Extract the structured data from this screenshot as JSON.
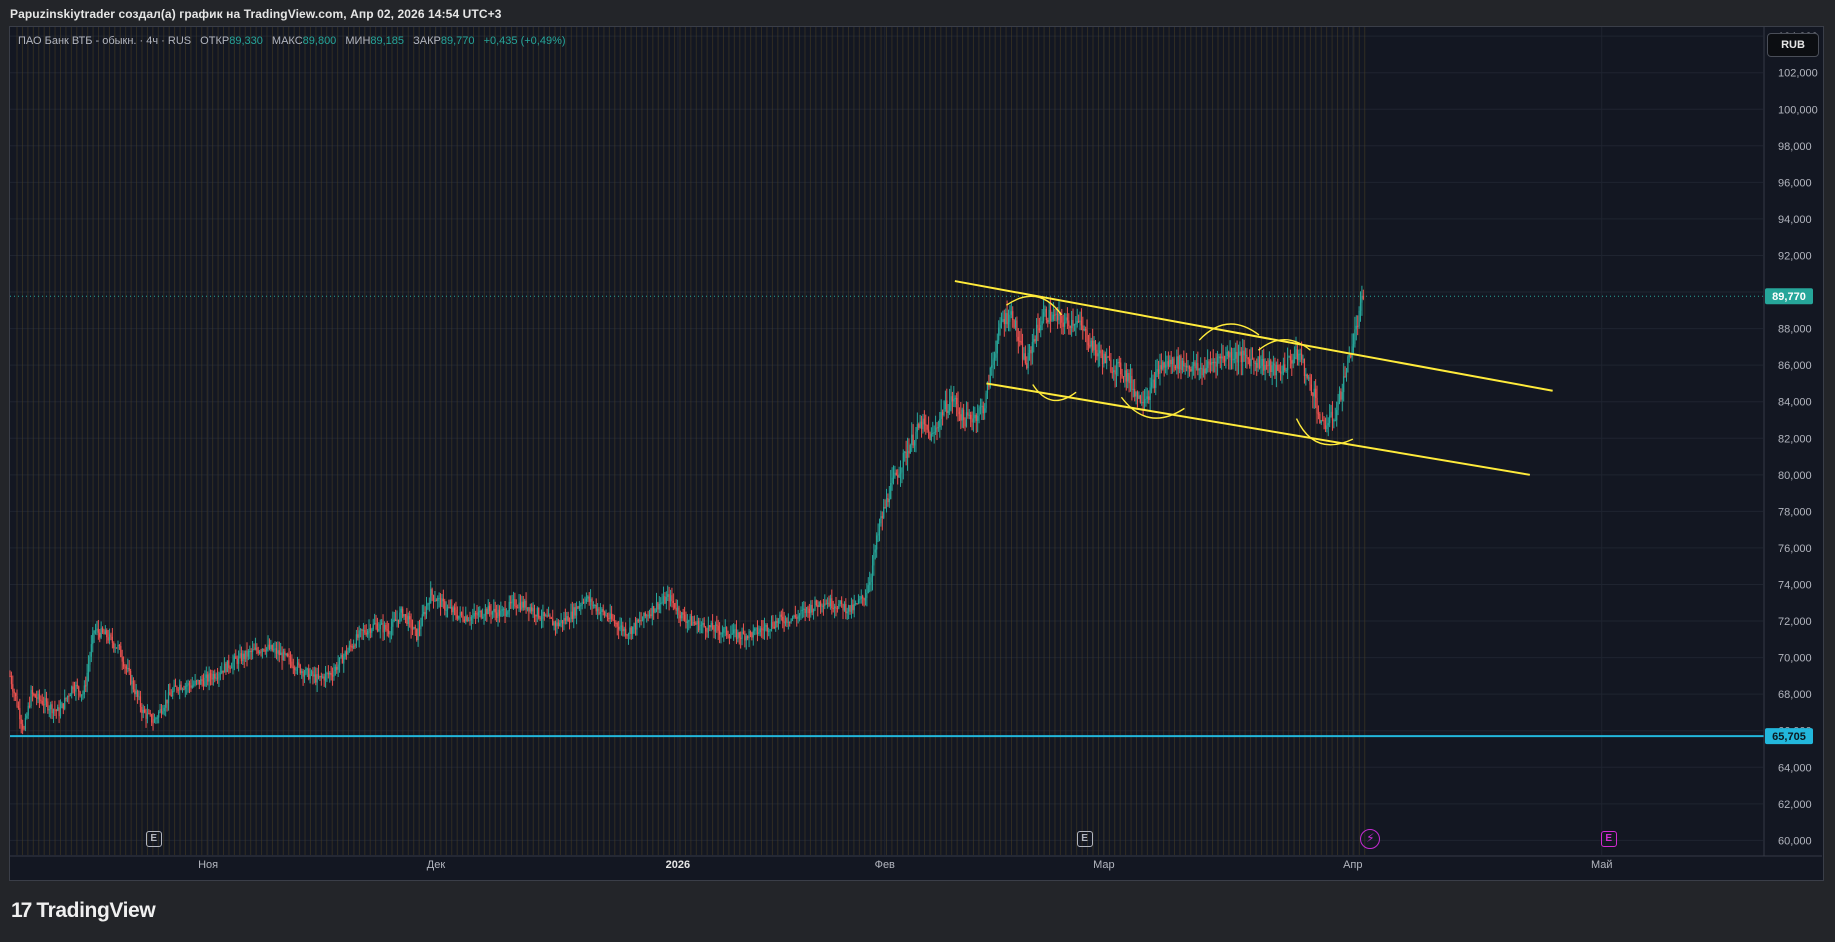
{
  "header": {
    "attribution": "Papuzinskiytrader создал(а) график на TradingView.com, Апр 02, 2026 14:54 UTC+3"
  },
  "legend": {
    "symbol": "ПАО Банк ВТБ - обыкн. · 4ч · RUS",
    "open_label": "ОТКР",
    "open_value": "89,330",
    "high_label": "МАКС",
    "high_value": "89,800",
    "low_label": "МИН",
    "low_value": "89,185",
    "close_label": "ЗАКР",
    "close_value": "89,770",
    "change": "+0,435 (+0,49%)"
  },
  "toolbar": {
    "currency": "RUB"
  },
  "branding": {
    "logo_mark": "17",
    "logo_name": "TradingView"
  },
  "events": {
    "earnings_symbol": "E",
    "dividend_symbol": "⚡"
  },
  "colors": {
    "background": "#131722",
    "up": "#26a69a",
    "down": "#ef5350",
    "trendline": "#ffeb3b",
    "support": "#22b7dc",
    "last_price": "#26a69a",
    "session_lines": "#4b3f25"
  },
  "chart_data": {
    "type": "candlestick",
    "symbol": "ПАО Банк ВТБ - обыкн.",
    "interval": "4ч",
    "currency": "RUB",
    "y_ticks": [
      "60,000",
      "62,000",
      "64,000",
      "66,000",
      "68,000",
      "70,000",
      "72,000",
      "74,000",
      "76,000",
      "78,000",
      "80,000",
      "82,000",
      "84,000",
      "86,000",
      "88,000",
      "90,000",
      "92,000",
      "94,000",
      "96,000",
      "98,000",
      "100,000",
      "102,000",
      "104,000"
    ],
    "ylim": [
      59.2,
      104.5
    ],
    "x_labels": [
      {
        "text": "Ноя",
        "t": 0.113,
        "bold": false
      },
      {
        "text": "Дек",
        "t": 0.243,
        "bold": false
      },
      {
        "text": "2026",
        "t": 0.381,
        "bold": true
      },
      {
        "text": "Фев",
        "t": 0.499,
        "bold": false
      },
      {
        "text": "Мар",
        "t": 0.624,
        "bold": false
      },
      {
        "text": "Апр",
        "t": 0.766,
        "bold": false
      },
      {
        "text": "Май",
        "t": 0.908,
        "bold": false
      }
    ],
    "price_path": [
      [
        0.0,
        69.0
      ],
      [
        0.008,
        66.0
      ],
      [
        0.012,
        68.0
      ],
      [
        0.02,
        67.5
      ],
      [
        0.028,
        67.0
      ],
      [
        0.036,
        68.5
      ],
      [
        0.042,
        68.0
      ],
      [
        0.048,
        71.5
      ],
      [
        0.055,
        71.2
      ],
      [
        0.062,
        70.5
      ],
      [
        0.07,
        68.5
      ],
      [
        0.076,
        67.0
      ],
      [
        0.082,
        66.5
      ],
      [
        0.088,
        67.5
      ],
      [
        0.096,
        68.5
      ],
      [
        0.104,
        68.5
      ],
      [
        0.112,
        68.8
      ],
      [
        0.12,
        69.3
      ],
      [
        0.128,
        69.8
      ],
      [
        0.136,
        70.2
      ],
      [
        0.145,
        70.6
      ],
      [
        0.152,
        70.3
      ],
      [
        0.16,
        69.8
      ],
      [
        0.168,
        69.2
      ],
      [
        0.176,
        68.8
      ],
      [
        0.184,
        69.2
      ],
      [
        0.192,
        70.3
      ],
      [
        0.2,
        71.3
      ],
      [
        0.208,
        71.8
      ],
      [
        0.216,
        71.5
      ],
      [
        0.224,
        72.5
      ],
      [
        0.232,
        71.2
      ],
      [
        0.24,
        73.5
      ],
      [
        0.248,
        72.8
      ],
      [
        0.256,
        72.3
      ],
      [
        0.264,
        72.2
      ],
      [
        0.272,
        72.6
      ],
      [
        0.28,
        72.4
      ],
      [
        0.288,
        73.0
      ],
      [
        0.296,
        72.8
      ],
      [
        0.304,
        72.2
      ],
      [
        0.312,
        71.8
      ],
      [
        0.32,
        72.3
      ],
      [
        0.328,
        73.3
      ],
      [
        0.336,
        72.6
      ],
      [
        0.344,
        72.0
      ],
      [
        0.352,
        71.4
      ],
      [
        0.36,
        72.0
      ],
      [
        0.368,
        72.8
      ],
      [
        0.376,
        73.3
      ],
      [
        0.384,
        72.2
      ],
      [
        0.392,
        71.8
      ],
      [
        0.4,
        71.6
      ],
      [
        0.408,
        71.4
      ],
      [
        0.416,
        71.2
      ],
      [
        0.424,
        71.3
      ],
      [
        0.432,
        71.7
      ],
      [
        0.44,
        72.1
      ],
      [
        0.448,
        72.2
      ],
      [
        0.456,
        72.7
      ],
      [
        0.464,
        73.1
      ],
      [
        0.472,
        72.9
      ],
      [
        0.48,
        72.6
      ],
      [
        0.488,
        73.4
      ],
      [
        0.492,
        75.0
      ],
      [
        0.496,
        77.2
      ],
      [
        0.502,
        79.2
      ],
      [
        0.508,
        80.5
      ],
      [
        0.514,
        81.8
      ],
      [
        0.52,
        82.8
      ],
      [
        0.526,
        82.0
      ],
      [
        0.532,
        83.5
      ],
      [
        0.538,
        84.2
      ],
      [
        0.544,
        83.0
      ],
      [
        0.55,
        83.2
      ],
      [
        0.556,
        83.8
      ],
      [
        0.56,
        86.0
      ],
      [
        0.566,
        88.5
      ],
      [
        0.572,
        88.8
      ],
      [
        0.576,
        87.0
      ],
      [
        0.58,
        86.0
      ],
      [
        0.584,
        87.5
      ],
      [
        0.59,
        88.8
      ],
      [
        0.596,
        88.6
      ],
      [
        0.602,
        88.3
      ],
      [
        0.608,
        88.5
      ],
      [
        0.614,
        87.6
      ],
      [
        0.62,
        86.7
      ],
      [
        0.628,
        86.0
      ],
      [
        0.636,
        85.6
      ],
      [
        0.644,
        84.2
      ],
      [
        0.65,
        84.5
      ],
      [
        0.656,
        85.9
      ],
      [
        0.664,
        86.2
      ],
      [
        0.672,
        86.0
      ],
      [
        0.68,
        85.7
      ],
      [
        0.688,
        86.3
      ],
      [
        0.696,
        86.6
      ],
      [
        0.704,
        86.4
      ],
      [
        0.712,
        86.2
      ],
      [
        0.718,
        85.9
      ],
      [
        0.724,
        85.6
      ],
      [
        0.73,
        86.3
      ],
      [
        0.736,
        86.6
      ],
      [
        0.74,
        85.2
      ],
      [
        0.744,
        84.5
      ],
      [
        0.748,
        82.6
      ],
      [
        0.752,
        82.9
      ],
      [
        0.756,
        83.3
      ],
      [
        0.76,
        84.8
      ],
      [
        0.764,
        86.5
      ],
      [
        0.768,
        88.0
      ],
      [
        0.772,
        89.77
      ]
    ],
    "last_price": 89.77,
    "last_price_label": "89,770",
    "support_level": 65.705,
    "support_label": "65,705",
    "trendlines": [
      {
        "name": "upper-channel",
        "t1": 0.539,
        "p1": 90.6,
        "t2": 0.88,
        "p2": 84.6
      },
      {
        "name": "lower-channel",
        "t1": 0.557,
        "p1": 85.0,
        "t2": 0.867,
        "p2": 80.0
      }
    ],
    "earnings_markers": [
      0.082,
      0.613
    ],
    "dividend_marker": 0.776,
    "future_earnings_marker": 0.912
  }
}
